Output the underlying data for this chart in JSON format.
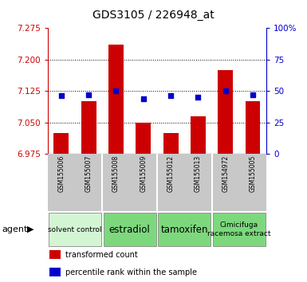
{
  "title": "GDS3105 / 226948_at",
  "samples": [
    "GSM155006",
    "GSM155007",
    "GSM155008",
    "GSM155009",
    "GSM155012",
    "GSM155013",
    "GSM154972",
    "GSM155005"
  ],
  "bar_values": [
    7.025,
    7.1,
    7.235,
    7.05,
    7.025,
    7.065,
    7.175,
    7.1
  ],
  "percentile_values": [
    46,
    47,
    50,
    44,
    46,
    45,
    50,
    47
  ],
  "ylim_left": [
    6.975,
    7.275
  ],
  "ylim_right": [
    0,
    100
  ],
  "yticks_left": [
    6.975,
    7.05,
    7.125,
    7.2,
    7.275
  ],
  "yticks_right": [
    0,
    25,
    50,
    75,
    100
  ],
  "bar_color": "#cc0000",
  "dot_color": "#0000cc",
  "left_axis_color": "#cc0000",
  "right_axis_color": "#0000cc",
  "grid_yticks": [
    7.05,
    7.125,
    7.2
  ],
  "sample_bg": "#c8c8c8",
  "group_defs": [
    {
      "start": 0,
      "end": 2,
      "label": "solvent control",
      "color": "#d4f5d4",
      "fontsize": 6.5
    },
    {
      "start": 2,
      "end": 4,
      "label": "estradiol",
      "color": "#7dd87d",
      "fontsize": 8.5
    },
    {
      "start": 4,
      "end": 6,
      "label": "tamoxifen",
      "color": "#7dd87d",
      "fontsize": 8.5
    },
    {
      "start": 6,
      "end": 8,
      "label": "Cimicifuga\nracemosa extract",
      "color": "#7dd87d",
      "fontsize": 6.5
    }
  ],
  "dividers": [
    1.5,
    3.5,
    5.5
  ],
  "legend_items": [
    {
      "label": "transformed count",
      "color": "#cc0000"
    },
    {
      "label": "percentile rank within the sample",
      "color": "#0000cc"
    }
  ],
  "agent_label": "agent"
}
